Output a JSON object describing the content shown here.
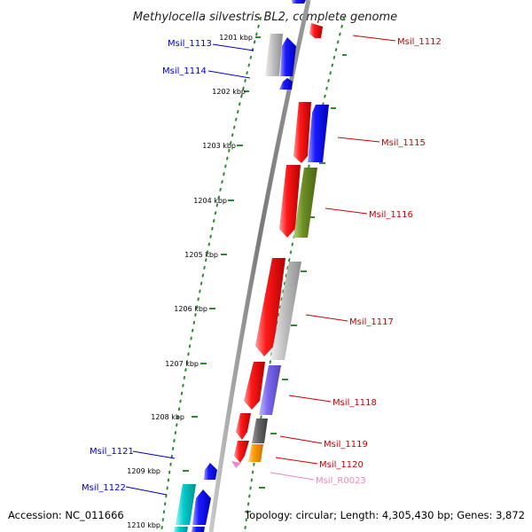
{
  "title": "Methylocella silvestris BL2, complete genome",
  "footer": {
    "accession": "Accession: NC_011666",
    "summary": "Topology: circular; Length: 4,305,430 bp; Genes: 3,872"
  },
  "ticks": [
    "1201 kbp",
    "1202 kbp",
    "1203 kbp",
    "1204 kbp",
    "1205 kbp",
    "1206 kbp",
    "1207 kbp",
    "1208 kbp",
    "1209 kbp",
    "1210 kbp"
  ],
  "gene_labels": {
    "msil_1112": "Msil_1112",
    "msil_1113": "Msil_1113",
    "msil_1114": "Msil_1114",
    "msil_1115": "Msil_1115",
    "msil_1116": "Msil_1116",
    "msil_1117": "Msil_1117",
    "msil_1118": "Msil_1118",
    "msil_1119": "Msil_1119",
    "msil_1120": "Msil_1120",
    "msil_r0023": "Msil_R0023",
    "msil_1121": "Msil_1121",
    "msil_1122": "Msil_1122"
  },
  "colors": {
    "backbone": "#7f7f7f",
    "tick": "#2e8b2e",
    "forward_label": "#cc0000",
    "reverse_label": "#0000cc",
    "rna_label": "#ee88bb",
    "red": "#ee0000",
    "blue": "#0000ee",
    "gray": "#b8b8b8",
    "olive": "#6b8e23",
    "purple": "#7b68ee",
    "darkgray": "#666666",
    "orange": "#ff9900",
    "cyan": "#00cccc",
    "pink": "#ee88cc"
  }
}
